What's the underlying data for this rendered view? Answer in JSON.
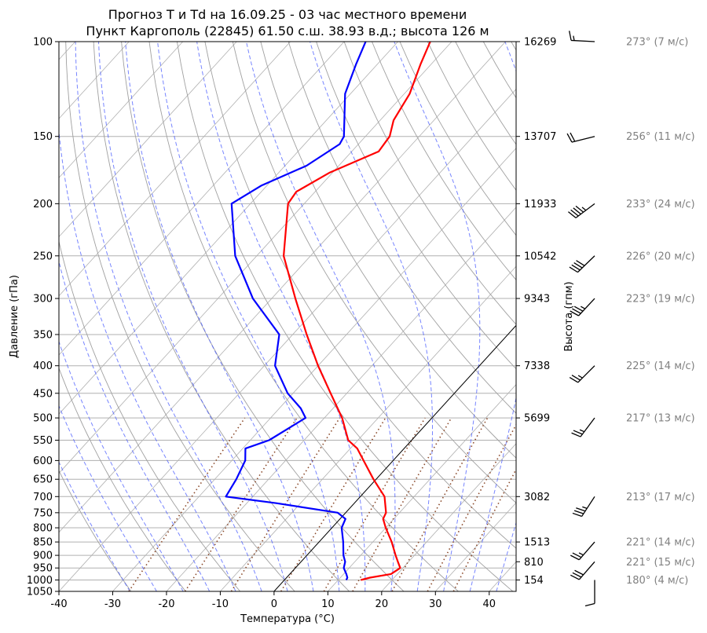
{
  "chart_data": {
    "type": "skew-t",
    "title_line1": "Прогноз T и Td на 16.09.25 - 03 час местного времени",
    "title_line2": "Пункт Каргополь (22845) 61.50 с.ш. 38.93 в.д.; высота 126 м",
    "xlabel": "Температура (°C)",
    "ylabel": "Давление (гПа)",
    "ylabel_right": "Высота (гпм)",
    "xlim": [
      -40,
      45
    ],
    "plim": [
      1050,
      100
    ],
    "xticks": [
      -40,
      -30,
      -20,
      -10,
      0,
      10,
      20,
      30,
      40
    ],
    "pticks": [
      100,
      150,
      200,
      250,
      300,
      350,
      400,
      450,
      500,
      550,
      600,
      650,
      700,
      750,
      800,
      850,
      900,
      950,
      1000,
      1050
    ],
    "heights": [
      {
        "p": 100,
        "label": "16269"
      },
      {
        "p": 150,
        "label": "13707"
      },
      {
        "p": 200,
        "label": "11933"
      },
      {
        "p": 250,
        "label": "10542"
      },
      {
        "p": 300,
        "label": "9343"
      },
      {
        "p": 400,
        "label": "7338"
      },
      {
        "p": 500,
        "label": "5699"
      },
      {
        "p": 700,
        "label": "3082"
      },
      {
        "p": 850,
        "label": "1513"
      },
      {
        "p": 925,
        "label": "810"
      },
      {
        "p": 1000,
        "label": "154"
      }
    ],
    "series": [
      {
        "name": "T",
        "color": "#ff0000",
        "points": [
          [
            1000,
            14.2
          ],
          [
            990,
            15.5
          ],
          [
            975,
            18.8
          ],
          [
            950,
            19.5
          ],
          [
            925,
            18.0
          ],
          [
            900,
            16.5
          ],
          [
            850,
            13.5
          ],
          [
            800,
            10.0
          ],
          [
            770,
            8.0
          ],
          [
            750,
            7.5
          ],
          [
            700,
            4.5
          ],
          [
            650,
            -0.5
          ],
          [
            600,
            -5.5
          ],
          [
            570,
            -8.7
          ],
          [
            550,
            -11.8
          ],
          [
            500,
            -16.7
          ],
          [
            450,
            -23.0
          ],
          [
            400,
            -30.0
          ],
          [
            350,
            -37.4
          ],
          [
            300,
            -45.6
          ],
          [
            250,
            -55.0
          ],
          [
            200,
            -63.0
          ],
          [
            190,
            -63.5
          ],
          [
            175,
            -60.5
          ],
          [
            160,
            -55.0
          ],
          [
            150,
            -55.5
          ],
          [
            140,
            -57.5
          ],
          [
            125,
            -59.0
          ],
          [
            110,
            -62.0
          ],
          [
            100,
            -64.0
          ]
        ]
      },
      {
        "name": "Td",
        "color": "#0000ff",
        "points": [
          [
            1000,
            11.5
          ],
          [
            990,
            11.3
          ],
          [
            975,
            10.5
          ],
          [
            950,
            9.0
          ],
          [
            925,
            8.2
          ],
          [
            900,
            6.8
          ],
          [
            850,
            4.5
          ],
          [
            800,
            1.8
          ],
          [
            770,
            1.0
          ],
          [
            750,
            -1.5
          ],
          [
            720,
            -14.5
          ],
          [
            700,
            -25.0
          ],
          [
            650,
            -26.0
          ],
          [
            600,
            -27.5
          ],
          [
            570,
            -29.5
          ],
          [
            550,
            -26.5
          ],
          [
            500,
            -23.5
          ],
          [
            480,
            -26.0
          ],
          [
            450,
            -31.0
          ],
          [
            400,
            -38.0
          ],
          [
            350,
            -42.5
          ],
          [
            300,
            -53.5
          ],
          [
            250,
            -64.0
          ],
          [
            200,
            -73.5
          ],
          [
            185,
            -71.0
          ],
          [
            170,
            -66.0
          ],
          [
            155,
            -63.5
          ],
          [
            150,
            -64.0
          ],
          [
            125,
            -71.0
          ],
          [
            110,
            -74.0
          ],
          [
            100,
            -76.0
          ]
        ]
      }
    ],
    "reference_lines": [
      "isotherms",
      "dry-adiabats",
      "moist-adiabats",
      "mixing-ratio",
      "0°C isotherm"
    ],
    "winds": [
      {
        "p": 100,
        "label": "273° (7 м/с)"
      },
      {
        "p": 150,
        "label": "256° (11 м/с)"
      },
      {
        "p": 200,
        "label": "233° (24 м/с)"
      },
      {
        "p": 250,
        "label": "226° (20 м/с)"
      },
      {
        "p": 300,
        "label": "223° (19 м/с)"
      },
      {
        "p": 400,
        "label": "225° (14 м/с)"
      },
      {
        "p": 500,
        "label": "217° (13 м/с)"
      },
      {
        "p": 700,
        "label": "213° (17 м/с)"
      },
      {
        "p": 850,
        "label": "221° (14 м/с)"
      },
      {
        "p": 925,
        "label": "221° (15 м/с)"
      },
      {
        "p": 1000,
        "label": "180° (4 м/с)"
      }
    ]
  }
}
